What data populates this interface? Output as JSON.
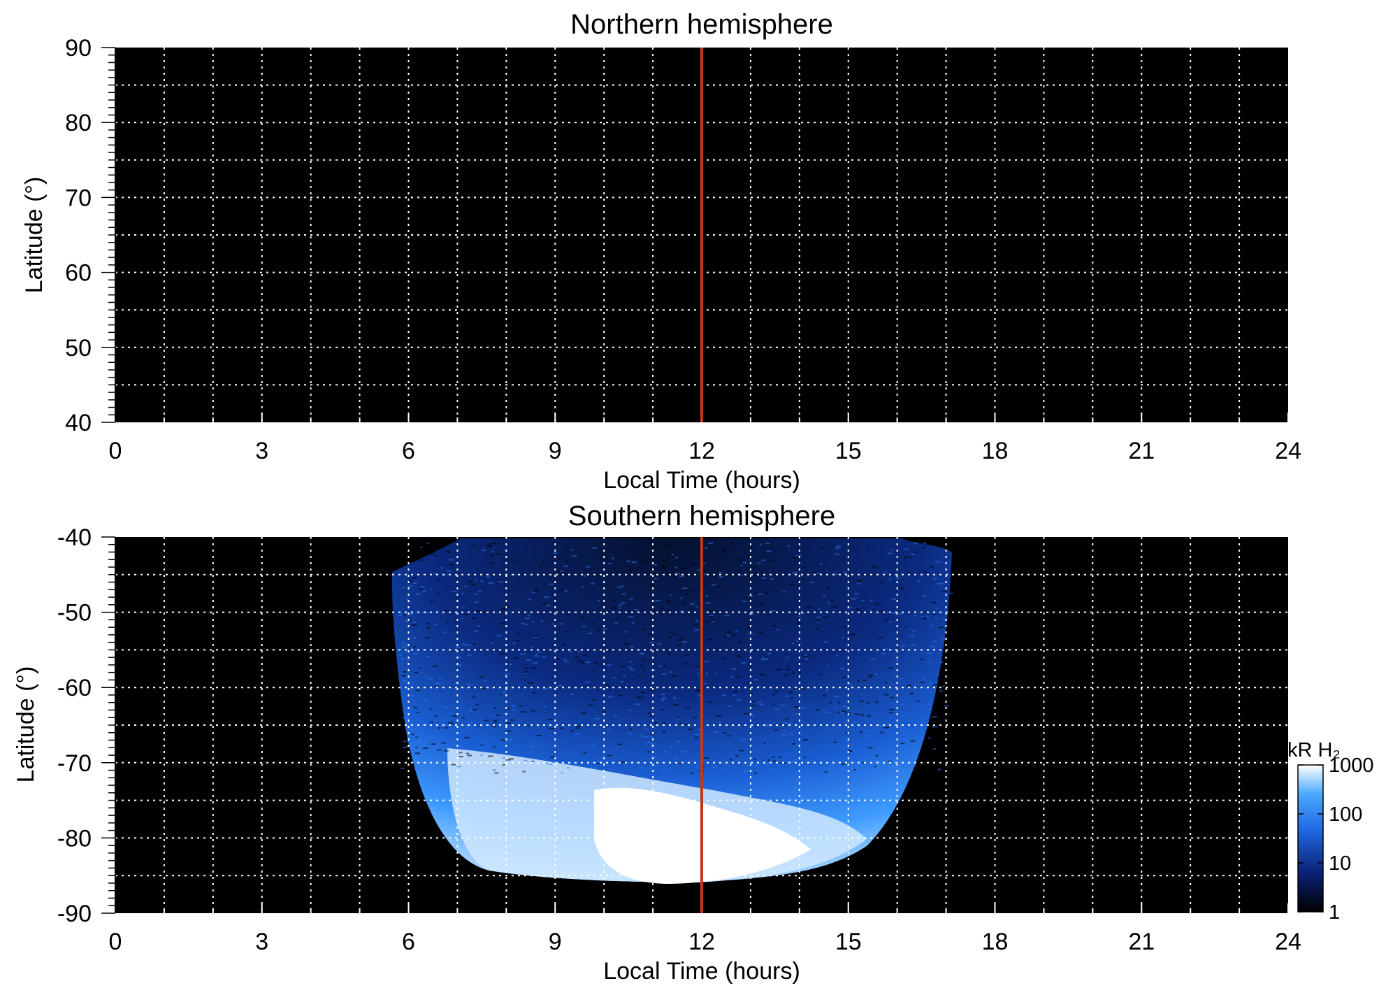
{
  "chart_data": [
    {
      "type": "heatmap",
      "title": "Northern hemisphere",
      "xlabel": "Local Time (hours)",
      "ylabel": "Latitude (°)",
      "xlim": [
        0,
        24
      ],
      "ylim": [
        40,
        90
      ],
      "xticks": [
        "0",
        "3",
        "6",
        "9",
        "12",
        "15",
        "18",
        "21",
        "24"
      ],
      "yticks": [
        "90",
        "80",
        "70",
        "60",
        "50",
        "40"
      ],
      "grid": true,
      "background": "#000000",
      "marker_line": {
        "x": 12,
        "color": "#c0391b"
      },
      "emission": []
    },
    {
      "type": "heatmap",
      "title": "Southern hemisphere",
      "xlabel": "Local Time (hours)",
      "ylabel": "Latitude (°)",
      "xlim": [
        0,
        24
      ],
      "ylim": [
        -90,
        -40
      ],
      "xticks": [
        "0",
        "3",
        "6",
        "9",
        "12",
        "15",
        "18",
        "21",
        "24"
      ],
      "yticks": [
        "-40",
        "-50",
        "-60",
        "-70",
        "-80",
        "-90"
      ],
      "grid": true,
      "background": "#000000",
      "marker_line": {
        "x": 12,
        "color": "#c0391b"
      },
      "colorbar": {
        "title": "kR H₂",
        "scale": "log",
        "range": [
          1,
          1000
        ],
        "ticks": [
          "1000",
          "100",
          "10",
          "1"
        ],
        "colors": [
          "#000000",
          "#0a1f6e",
          "#1f66e0",
          "#4aa8ff",
          "#ffffff"
        ]
      },
      "emission": [
        {
          "lt_start": 7.5,
          "lt_end": 16.0,
          "lat_max": -40,
          "lat_min": -58,
          "level": "low"
        },
        {
          "lt_start": 5.8,
          "lt_end": 17.0,
          "lat_max": -58,
          "lat_min": -70,
          "level": "medium"
        },
        {
          "lt_start": 6.5,
          "lt_end": 16.0,
          "lat_max": -70,
          "lat_min": -86,
          "level": "high"
        },
        {
          "lt_start": 10.0,
          "lt_end": 13.5,
          "lat_max": -75,
          "lat_min": -87,
          "level": "saturated"
        }
      ]
    }
  ]
}
